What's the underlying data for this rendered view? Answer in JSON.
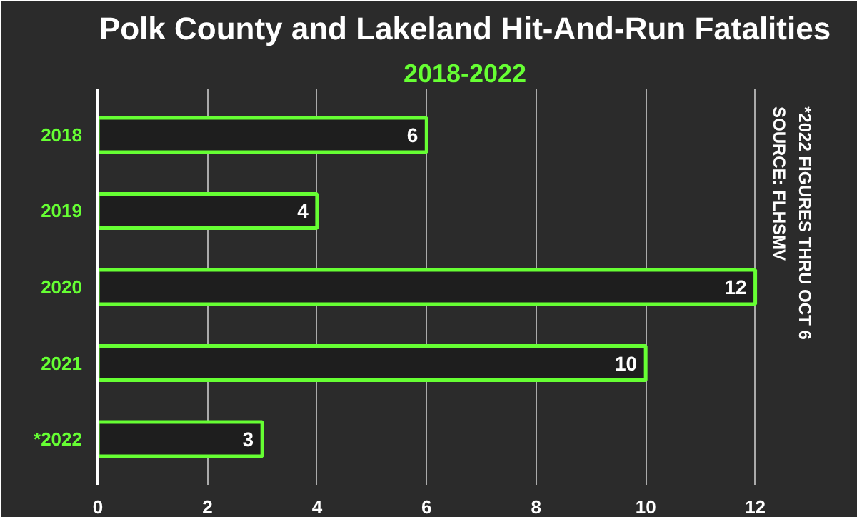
{
  "chart_data": {
    "type": "bar",
    "orientation": "horizontal",
    "title": "Polk County and Lakeland Hit-And-Run Fatalities",
    "subtitle": "2018-2022",
    "categories": [
      "2018",
      "2019",
      "2020",
      "2021",
      "*2022"
    ],
    "values": [
      6,
      4,
      12,
      10,
      3
    ],
    "color": "#66ff33",
    "xlim": [
      0,
      13.4
    ],
    "xticks": [
      0,
      2,
      4,
      6,
      8,
      10,
      12
    ],
    "grid": "x",
    "data_labels": true,
    "annotations": [
      "SOURCE: FLHSMV",
      "*2022 FIGURES THRU OCT 6"
    ]
  }
}
